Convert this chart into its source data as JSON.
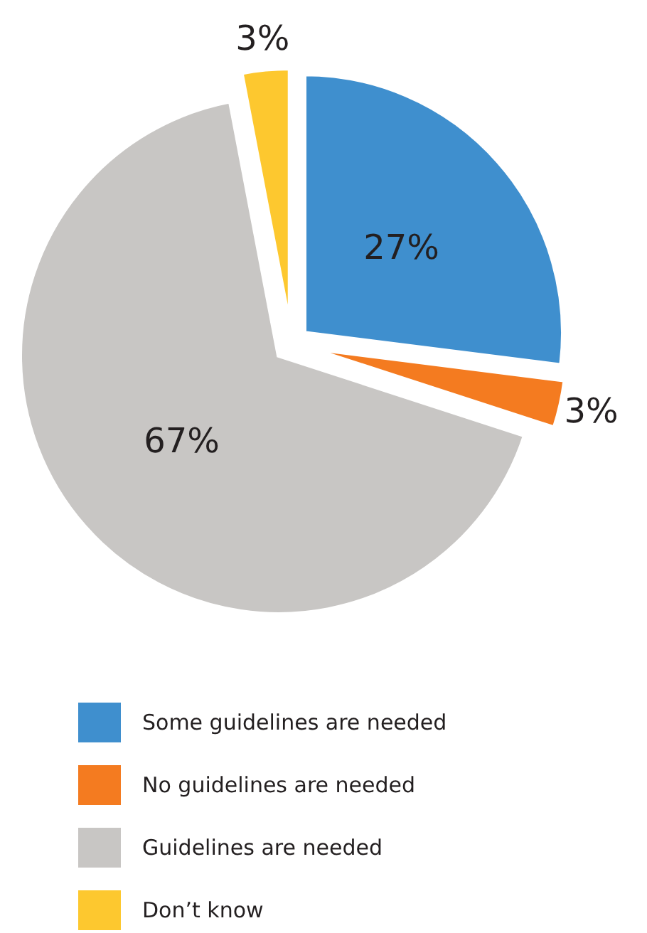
{
  "chart_data": {
    "type": "pie",
    "categories": [
      "Some guidelines are needed",
      "No guidelines are needed",
      "Guidelines are needed",
      "Don’t know"
    ],
    "values": [
      27,
      3,
      67,
      3
    ],
    "colors": [
      "#3f8fce",
      "#f47b20",
      "#c8c6c4",
      "#fdc82f"
    ],
    "value_labels": [
      "27%",
      "3%",
      "67%",
      "3%"
    ],
    "legend": "bottom"
  }
}
